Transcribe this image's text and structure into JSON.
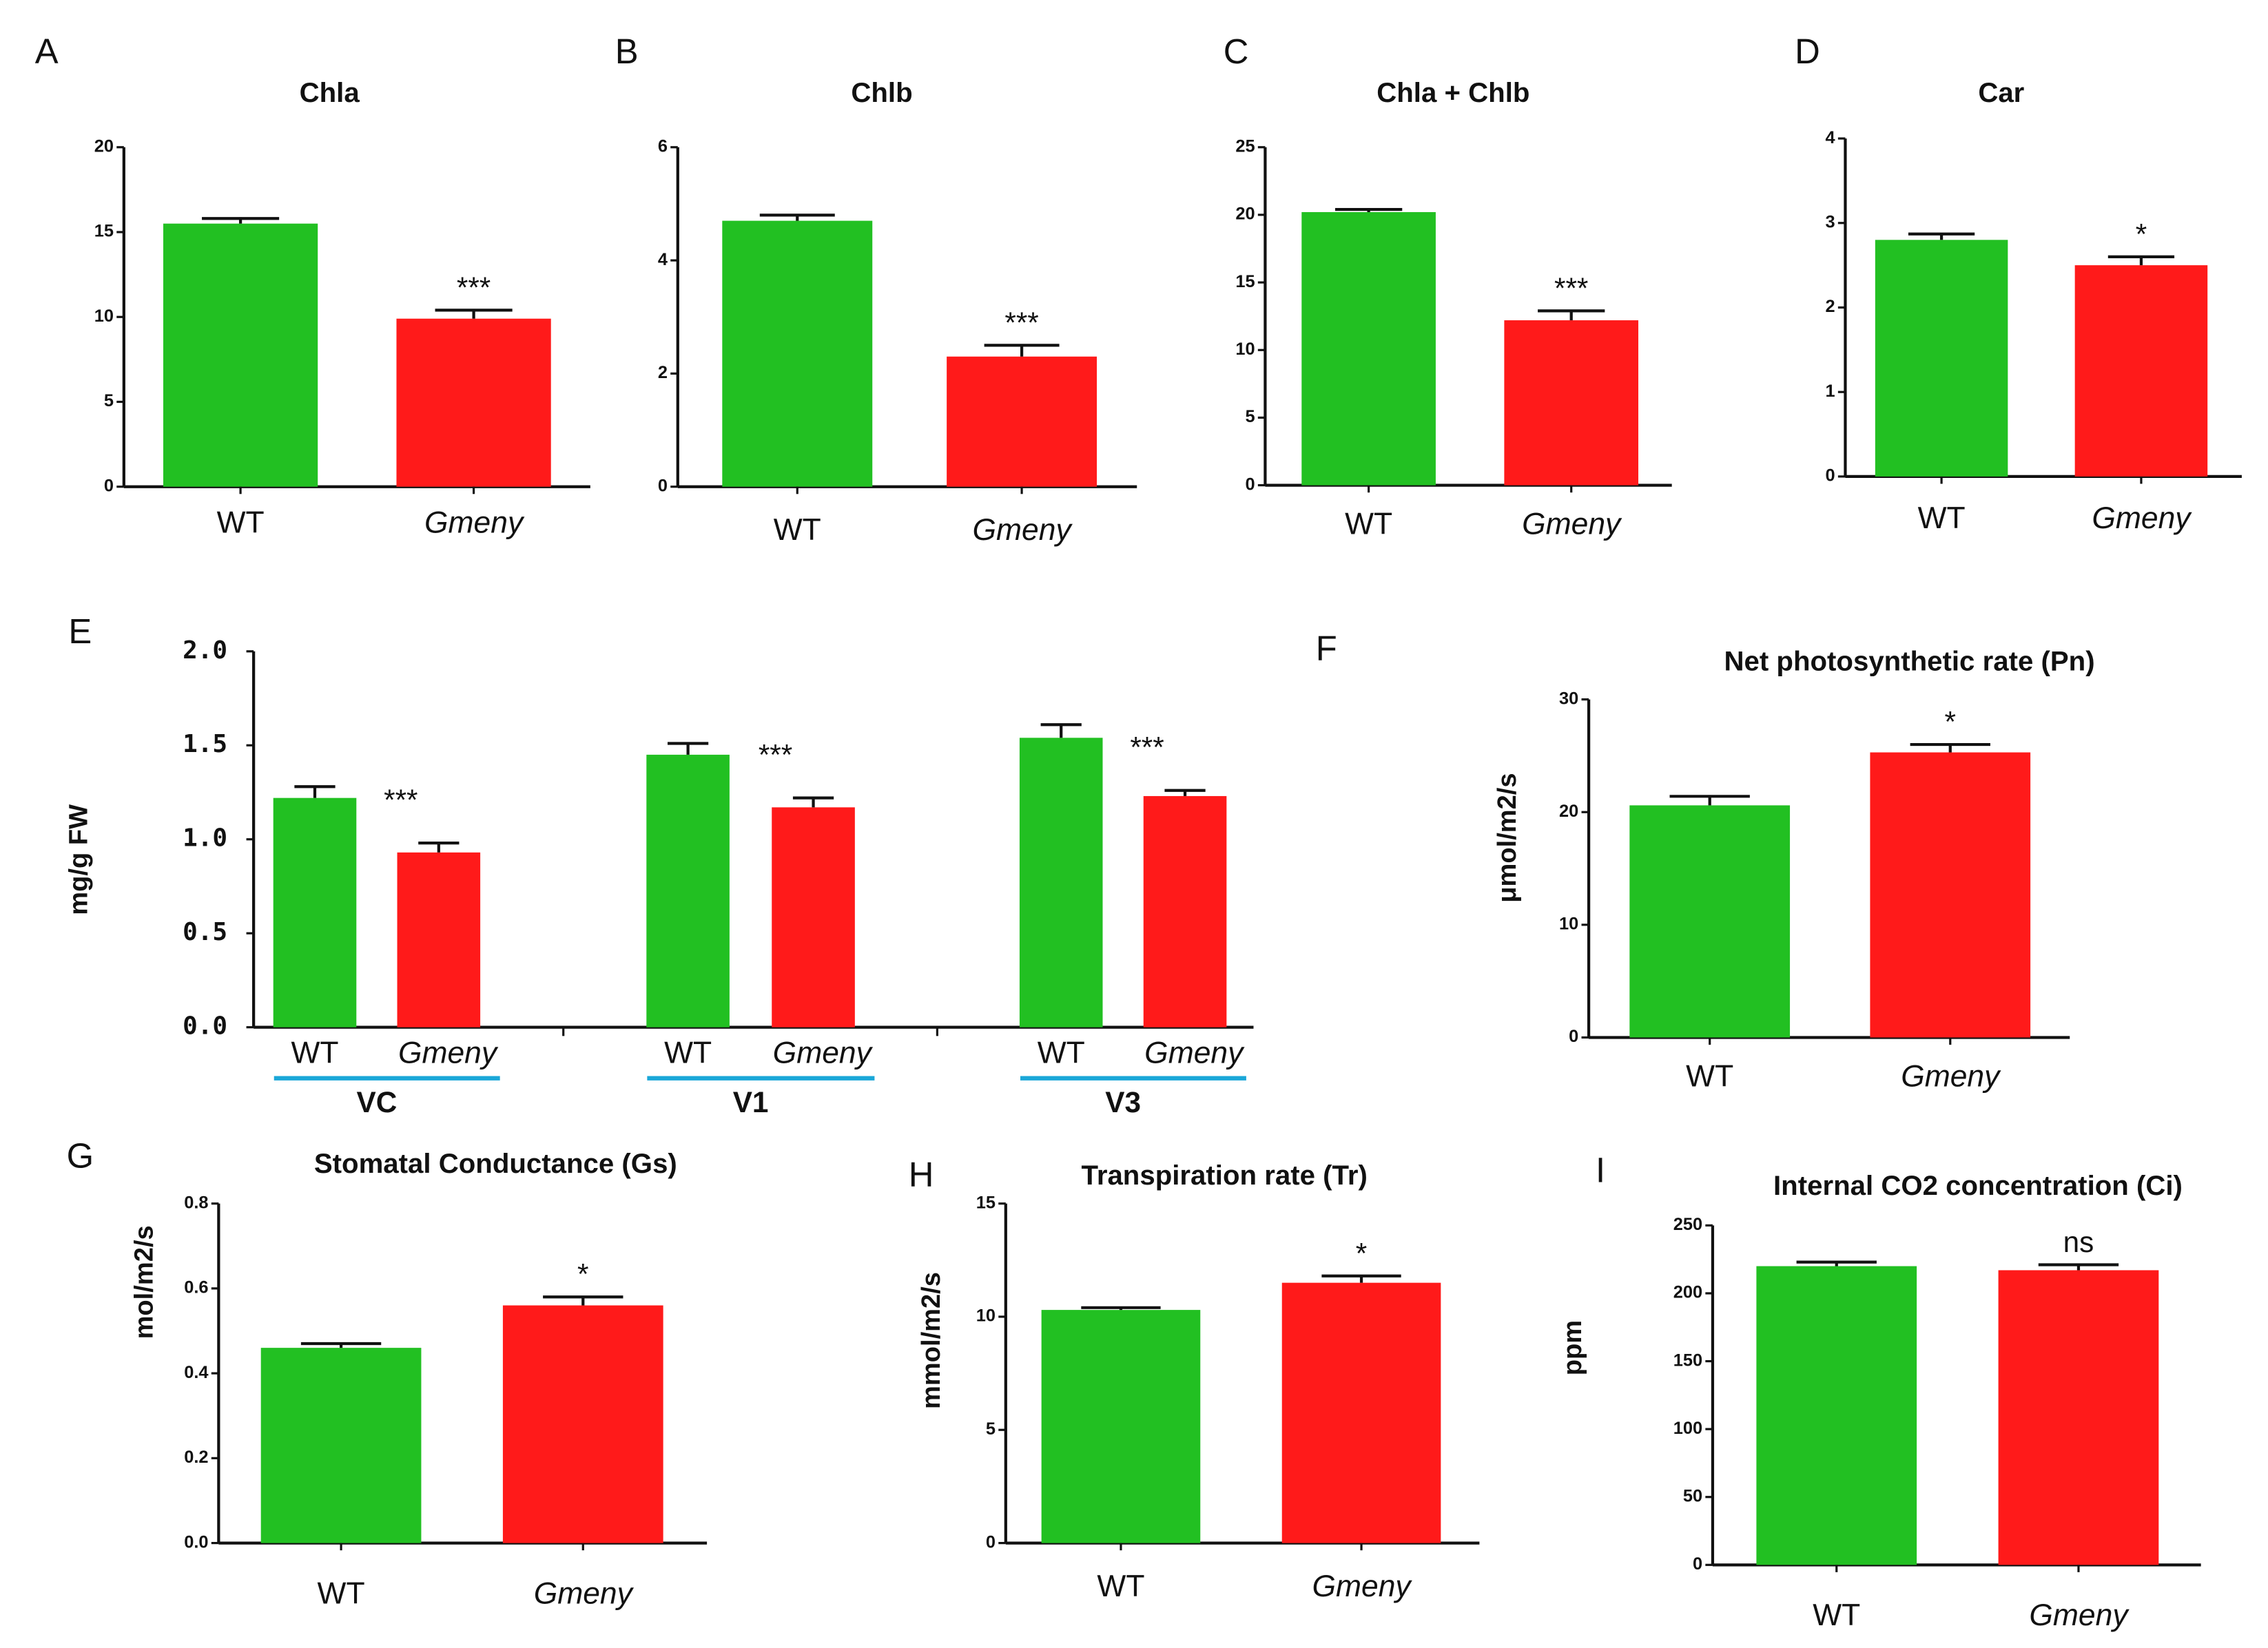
{
  "chart_data": [
    {
      "type": "bar",
      "panel": "A",
      "title": "Chla",
      "categories": [
        "WT",
        "Gmeny"
      ],
      "values": [
        15.5,
        9.9
      ],
      "errors": [
        0.3,
        0.5
      ],
      "colors": [
        "#22c022",
        "#ff1a1a"
      ],
      "annotation": "***",
      "ylim": [
        0,
        20
      ],
      "yticks": [
        0,
        5,
        10,
        15,
        20
      ]
    },
    {
      "type": "bar",
      "panel": "B",
      "title": "Chlb",
      "categories": [
        "WT",
        "Gmeny"
      ],
      "values": [
        4.7,
        2.3
      ],
      "errors": [
        0.1,
        0.2
      ],
      "colors": [
        "#22c022",
        "#ff1a1a"
      ],
      "annotation": "***",
      "ylim": [
        0,
        6
      ],
      "yticks": [
        0,
        2,
        4,
        6
      ]
    },
    {
      "type": "bar",
      "panel": "C",
      "title": "Chla + Chlb",
      "categories": [
        "WT",
        "Gmeny"
      ],
      "values": [
        20.2,
        12.2
      ],
      "errors": [
        0.2,
        0.7
      ],
      "colors": [
        "#22c022",
        "#ff1a1a"
      ],
      "annotation": "***",
      "ylim": [
        0,
        25
      ],
      "yticks": [
        0,
        5,
        10,
        15,
        20,
        25
      ]
    },
    {
      "type": "bar",
      "panel": "D",
      "title": "Car",
      "categories": [
        "WT",
        "Gmeny"
      ],
      "values": [
        2.8,
        2.5
      ],
      "errors": [
        0.07,
        0.1
      ],
      "colors": [
        "#22c022",
        "#ff1a1a"
      ],
      "annotation": "*",
      "ylim": [
        0,
        4
      ],
      "yticks": [
        0,
        1,
        2,
        3,
        4
      ]
    },
    {
      "type": "grouped-bar",
      "panel": "E",
      "ylabel": "mg/g FW",
      "categories": [
        "VC",
        "V1",
        "V3"
      ],
      "series": [
        {
          "name": "WT",
          "color": "#22c022",
          "values": [
            1.22,
            1.45,
            1.54
          ],
          "errors": [
            0.06,
            0.06,
            0.07
          ]
        },
        {
          "name": "Gmeny",
          "color": "#ff1a1a",
          "values": [
            0.93,
            1.17,
            1.23
          ],
          "errors": [
            0.05,
            0.05,
            0.03
          ]
        }
      ],
      "annotations": [
        "***",
        "***",
        "***"
      ],
      "group_line_color": "#1aa7d8",
      "ylim": [
        0,
        2
      ],
      "yticks": [
        {
          "value": 0,
          "label": "0.0"
        },
        0.5,
        {
          "value": 1,
          "label": "1.0"
        },
        1.5,
        {
          "value": 2,
          "label": "2.0"
        }
      ]
    },
    {
      "type": "bar",
      "panel": "F",
      "title": "Net photosynthetic rate (Pn)",
      "ylabel": "μmol/m2/s",
      "categories": [
        "WT",
        "Gmeny"
      ],
      "values": [
        20.6,
        25.3
      ],
      "errors": [
        0.8,
        0.7
      ],
      "colors": [
        "#22c022",
        "#ff1a1a"
      ],
      "annotation": "*",
      "ylim": [
        0,
        30
      ],
      "yticks": [
        0,
        10,
        20,
        30
      ]
    },
    {
      "type": "bar",
      "panel": "G",
      "title": "Stomatal Conductance (Gs)",
      "ylabel": "mol/m2/s",
      "categories": [
        "WT",
        "Gmeny"
      ],
      "values": [
        0.46,
        0.56
      ],
      "errors": [
        0.01,
        0.02
      ],
      "colors": [
        "#22c022",
        "#ff1a1a"
      ],
      "annotation": "*",
      "ylim": [
        0,
        0.8
      ],
      "yticks": [
        {
          "value": 0,
          "label": "0.0"
        },
        0.2,
        0.4,
        0.6,
        0.8
      ]
    },
    {
      "type": "bar",
      "panel": "H",
      "title": "Transpiration rate (Tr)",
      "ylabel": "mmol/m2/s",
      "categories": [
        "WT",
        "Gmeny"
      ],
      "values": [
        10.3,
        11.5
      ],
      "errors": [
        0.1,
        0.3
      ],
      "colors": [
        "#22c022",
        "#ff1a1a"
      ],
      "annotation": "*",
      "ylim": [
        0,
        15
      ],
      "yticks": [
        0,
        5,
        10,
        15
      ]
    },
    {
      "type": "bar",
      "panel": "I",
      "title": "Internal CO2 concentration (Ci)",
      "ylabel": "ppm",
      "categories": [
        "WT",
        "Gmeny"
      ],
      "values": [
        220,
        217
      ],
      "errors": [
        3,
        4
      ],
      "colors": [
        "#22c022",
        "#ff1a1a"
      ],
      "annotation": "ns",
      "ylim": [
        0,
        250
      ],
      "yticks": [
        0,
        50,
        100,
        150,
        200,
        250
      ]
    }
  ]
}
